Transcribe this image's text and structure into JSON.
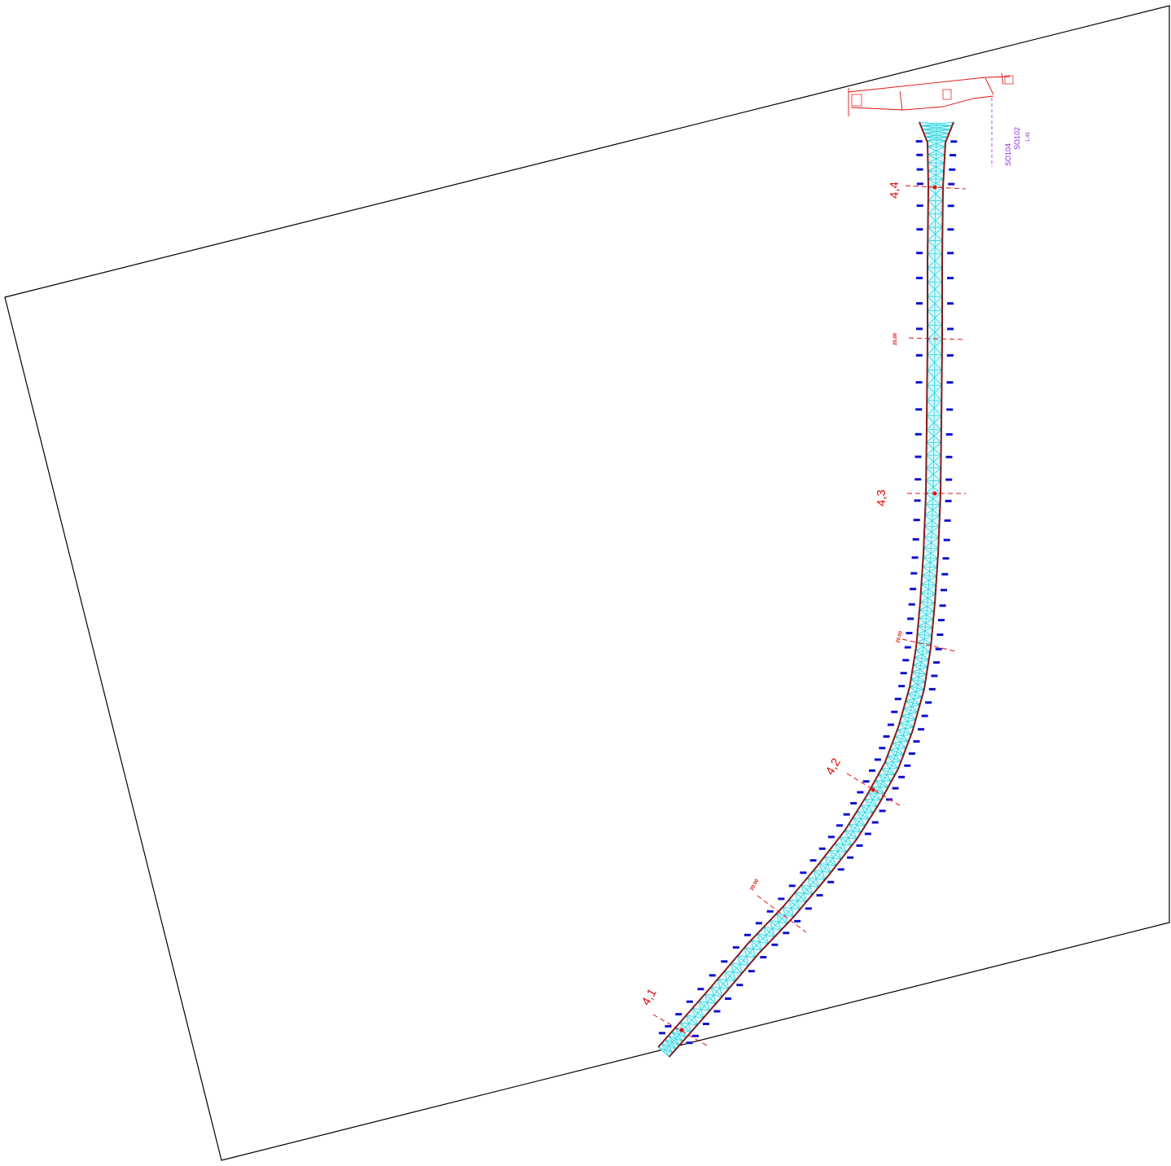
{
  "stations": [
    {
      "label": "4,1"
    },
    {
      "label": "4,2"
    },
    {
      "label": "4,3"
    },
    {
      "label": "4,4"
    }
  ],
  "chainages": [
    "20.00",
    "20.00",
    "20.00"
  ],
  "intersection": {
    "road_left": "SO104",
    "road_right": "SO102",
    "note": "1,45"
  },
  "colors": {
    "boundary": "#000000",
    "road_edge": "#8b1a1a",
    "mesh": "#22d3e0",
    "fill": "#d8f8fa",
    "annotation_red": "#e01010",
    "point_ids": "#1010d0",
    "purple": "#8a2be2"
  }
}
